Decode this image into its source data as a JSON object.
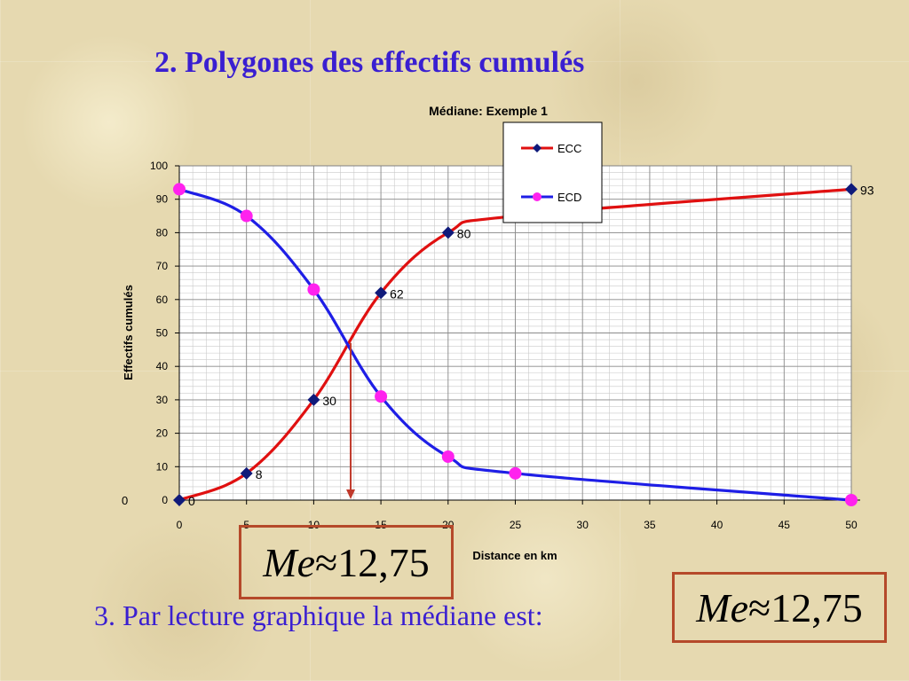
{
  "slide": {
    "title": "2. Polygones des effectifs cumulés",
    "conclusion": "3. Par lecture graphique la médiane est:",
    "median_symbol": "Me",
    "median_approx": "≈",
    "median_value": "12,75",
    "stray_zero_label": "0"
  },
  "colors": {
    "title": "#3a1fd1",
    "ecc": "#e01010",
    "ecc_marker": "#0f1a7a",
    "ecd": "#1e1ee6",
    "ecd_marker": "#ff22ee",
    "median_arrow": "#c0392b",
    "box_border": "#b5492a"
  },
  "chart_data": {
    "type": "line",
    "title": "Médiane: Exemple 1",
    "xlabel": "Distance en km",
    "ylabel": "Effectifs cumulés",
    "xlim": [
      0,
      50
    ],
    "ylim": [
      0,
      100
    ],
    "xticks": [
      0,
      5,
      10,
      15,
      20,
      25,
      30,
      35,
      40,
      45,
      50
    ],
    "yticks": [
      0,
      10,
      20,
      30,
      40,
      50,
      60,
      70,
      80,
      90,
      100
    ],
    "grid": true,
    "legend_position": "top-right",
    "series": [
      {
        "name": "ECC",
        "x": [
          0,
          5,
          10,
          15,
          20,
          25,
          50
        ],
        "y": [
          0,
          8,
          30,
          62,
          80,
          85,
          93
        ],
        "data_labels": [
          "0",
          "8",
          "30",
          "62",
          "80",
          "",
          "93"
        ],
        "marker": "diamond"
      },
      {
        "name": "ECD",
        "x": [
          0,
          5,
          10,
          15,
          20,
          25,
          50
        ],
        "y": [
          93,
          85,
          63,
          31,
          13,
          8,
          0
        ],
        "marker": "circle"
      }
    ],
    "median_marker_x": 12.75
  }
}
